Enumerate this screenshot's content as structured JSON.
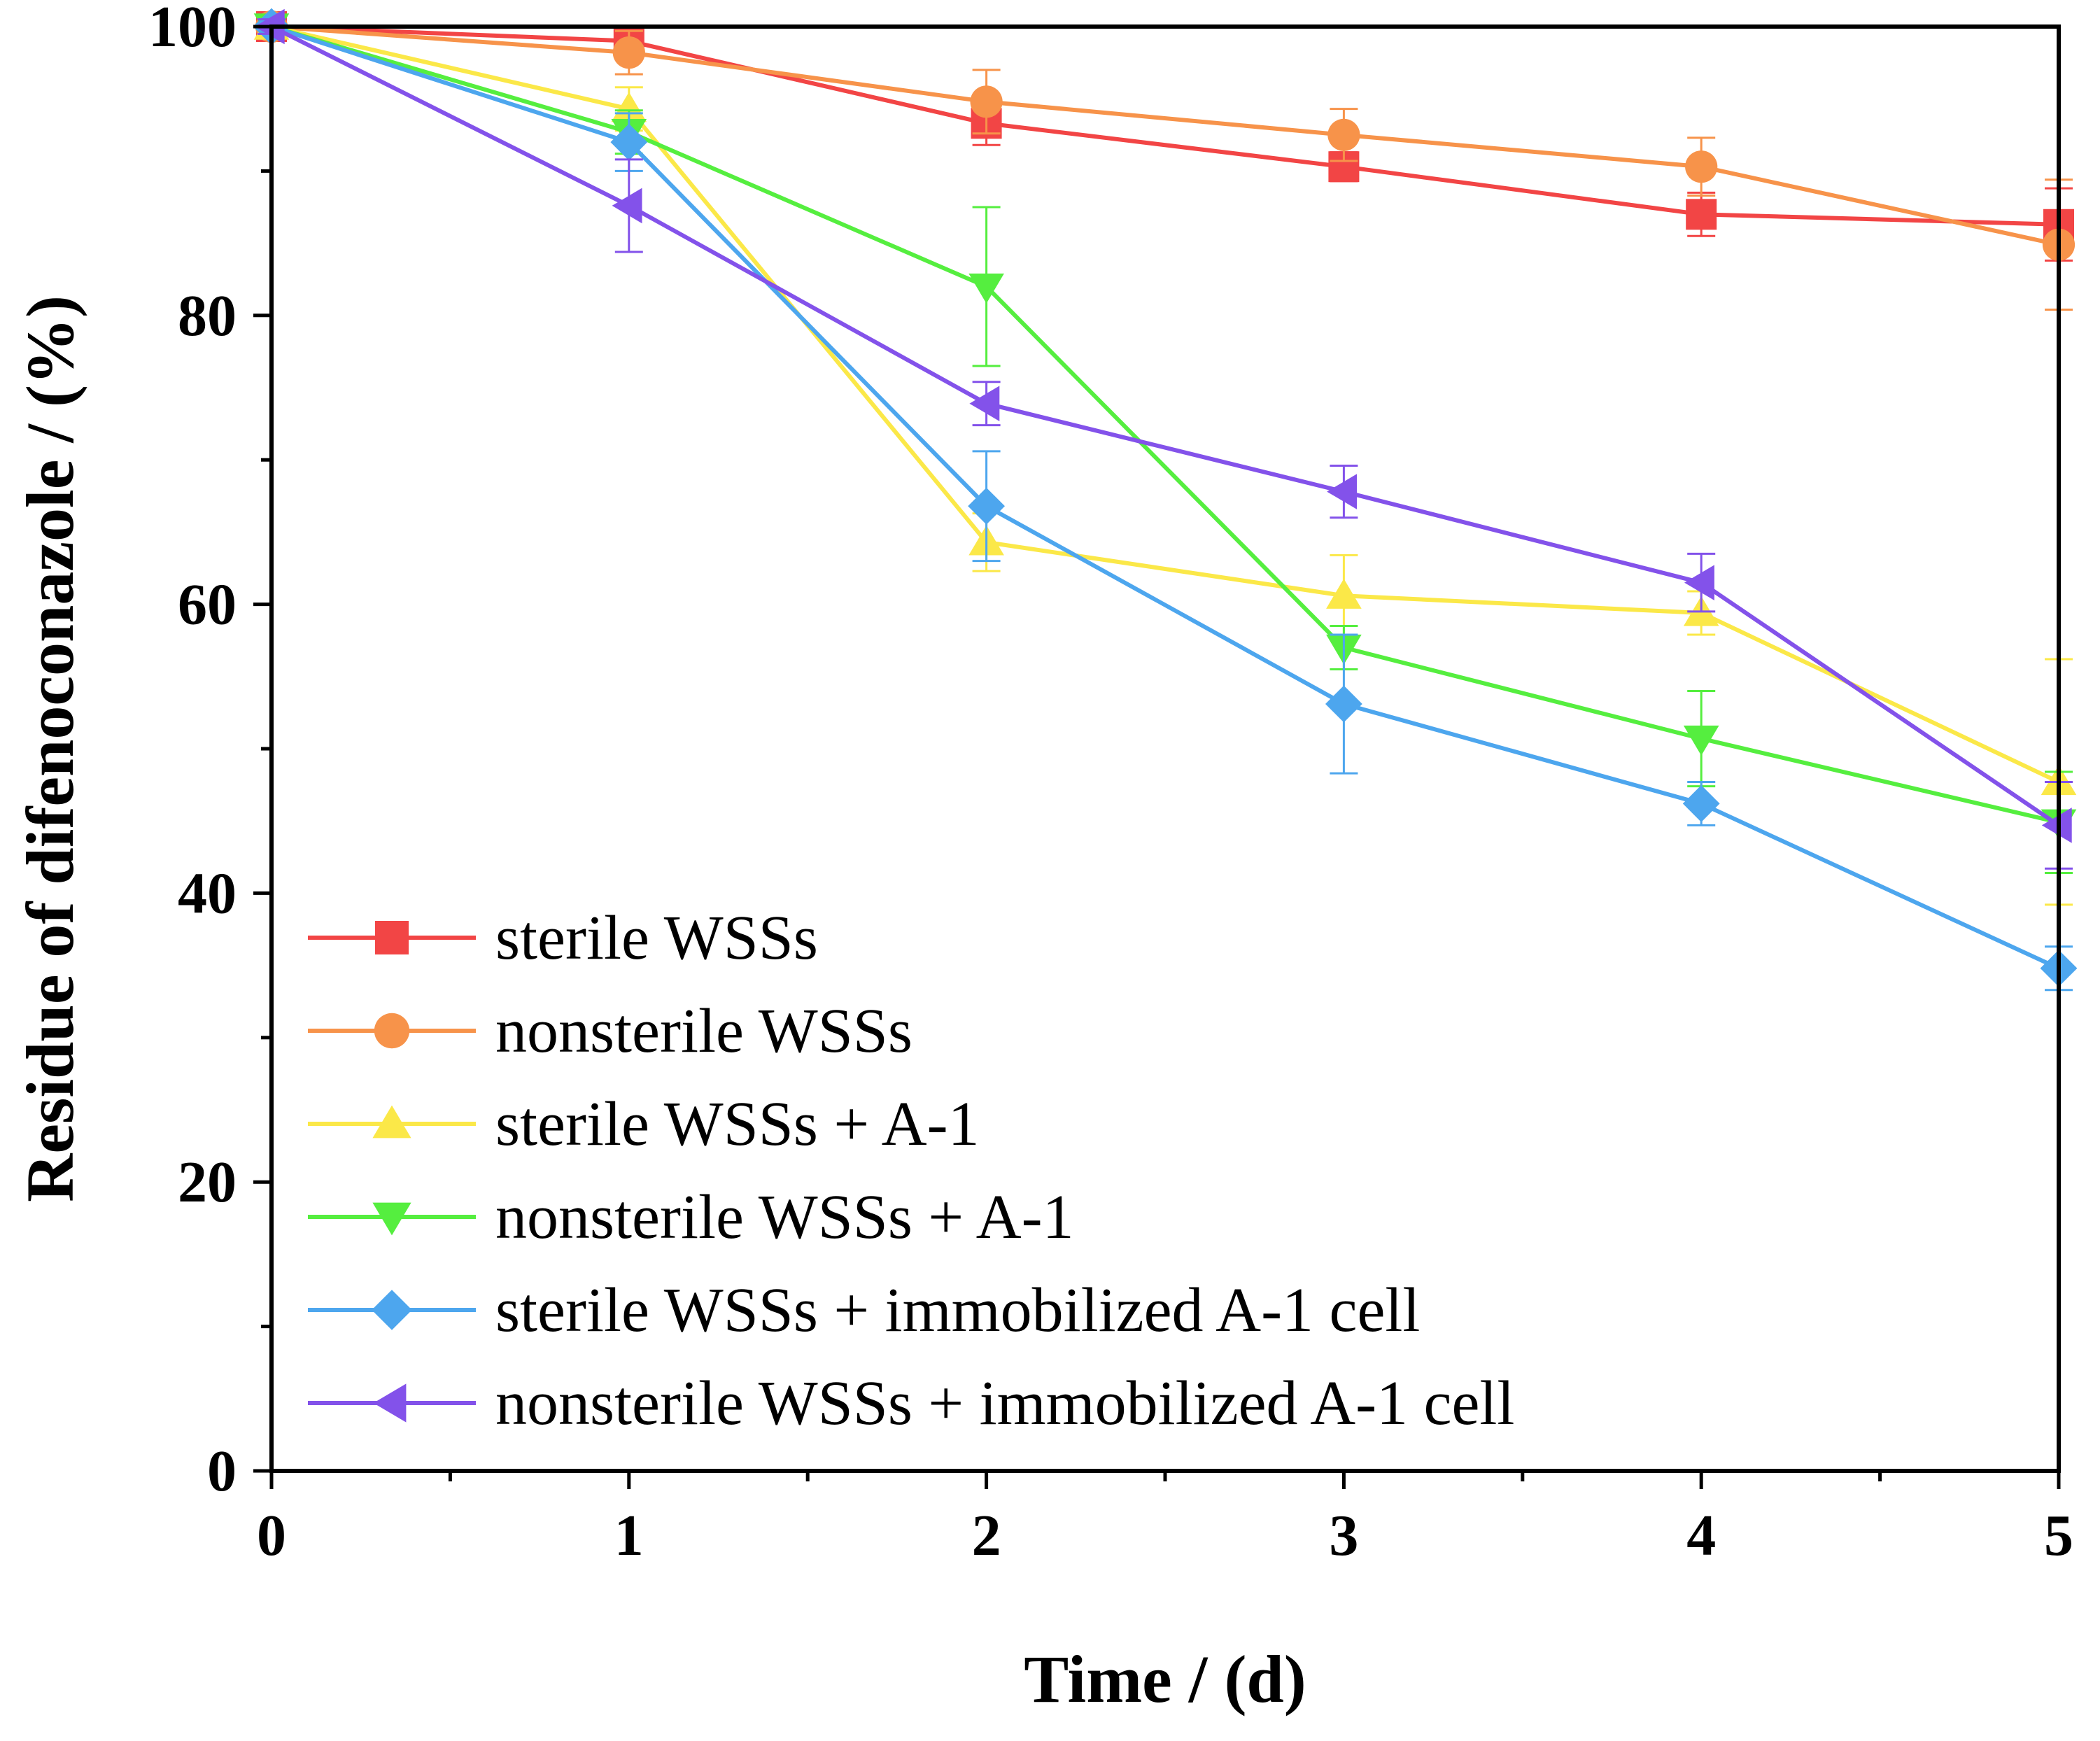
{
  "chart_data": {
    "type": "line",
    "title": "",
    "xlabel": "Time / (d)",
    "ylabel": "Residue of difenoconazole / (%)",
    "xlim": [
      0,
      5
    ],
    "ylim": [
      0,
      100
    ],
    "xticks": [
      "0",
      "1",
      "2",
      "3",
      "4",
      "5"
    ],
    "yticks": [
      "0",
      "20",
      "40",
      "60",
      "80",
      "100"
    ],
    "x": [
      0,
      1,
      2,
      3,
      4,
      5
    ],
    "grid": false,
    "legend_position": "bottom-left",
    "series": [
      {
        "name": "sterile WSSs",
        "color": "#f24545",
        "marker": "square",
        "values": [
          100,
          99.0,
          93.3,
          90.3,
          87.0,
          86.3
        ],
        "errors": [
          0.5,
          1.0,
          1.5,
          1.0,
          1.5,
          2.5
        ]
      },
      {
        "name": "nonsterile WSSs",
        "color": "#f7934a",
        "marker": "circle",
        "values": [
          100,
          98.2,
          94.8,
          92.5,
          90.3,
          84.9
        ],
        "errors": [
          0.5,
          1.5,
          2.2,
          1.8,
          2.0,
          4.5
        ]
      },
      {
        "name": "sterile WSSs + A-1",
        "color": "#fbe848",
        "marker": "triangle-up",
        "values": [
          100,
          94.3,
          64.3,
          60.6,
          59.4,
          47.7
        ],
        "errors": [
          0.5,
          1.5,
          2.0,
          2.8,
          1.5,
          8.5
        ]
      },
      {
        "name": "nonsterile WSSs + A-1",
        "color": "#55ee3f",
        "marker": "triangle-down",
        "values": [
          100,
          92.7,
          82.0,
          57.0,
          50.7,
          44.9
        ],
        "errors": [
          0.5,
          1.5,
          5.5,
          1.5,
          3.3,
          3.5
        ]
      },
      {
        "name": "sterile WSSs + immobilized A-1 cell",
        "color": "#4da6ee",
        "marker": "diamond",
        "values": [
          100,
          92.0,
          66.8,
          53.1,
          46.2,
          34.8
        ],
        "errors": [
          0.5,
          2.0,
          3.8,
          4.8,
          1.5,
          1.5
        ]
      },
      {
        "name": "nonsterile WSSs + immobilized A-1 cell",
        "color": "#8352ea",
        "marker": "triangle-left",
        "values": [
          100,
          87.6,
          73.9,
          67.8,
          61.5,
          44.7
        ],
        "errors": [
          0.5,
          3.2,
          1.5,
          1.8,
          2.0,
          3.0
        ]
      }
    ]
  }
}
